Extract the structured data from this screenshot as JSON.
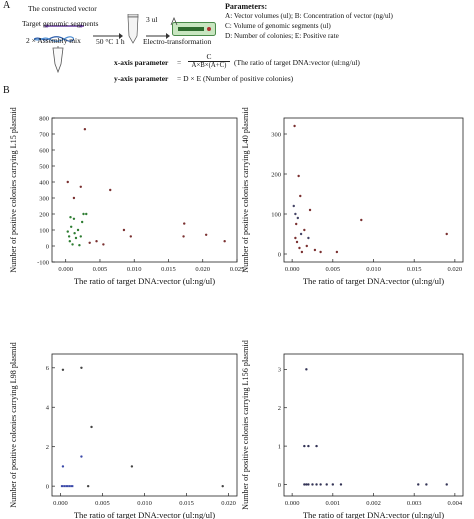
{
  "panelA": {
    "letter": "A",
    "constructed_vector": "The constructed vector",
    "target_segments": "Target genomic segments",
    "assembly_mix": "2 × Assembly mix",
    "incubation": "50 °C 1 h",
    "volume": "3 ul",
    "electro": "Electro-transformation",
    "params_title": "Parameters:",
    "params": [
      "A: Vector volumes (ul); B: Concentration of vector (ng/ul)",
      "C: Volume of genomic segments (ul)",
      "D: Number of colonies; E: Positive rate"
    ],
    "x_param_label": "x-axis parameter",
    "x_param_eq": "=",
    "x_param_num": "C",
    "x_param_den": "A×B×(A+C)",
    "x_param_note": "(The ratio of target DNA:vector (ul:ng/ul)",
    "y_param_label": "y-axis parameter",
    "y_param_rest": "= D × E (Number of positive colonies)"
  },
  "panelB": {
    "letter": "B"
  },
  "chart_data": [
    {
      "type": "scatter",
      "xlabel": "The ratio of target DNA:vector (ul:ng/ul)",
      "ylabel": "Number of positive colonies carrying L15 plasmid",
      "xlim": [
        -0.002,
        0.025
      ],
      "ylim": [
        -100,
        800
      ],
      "xticks": [
        0.0,
        0.005,
        0.01,
        0.015,
        0.02,
        0.025
      ],
      "xtick_labels": [
        "0.000",
        "0.005",
        "0.010",
        "0.015",
        "0.020",
        "0.025"
      ],
      "yticks": [
        -100,
        0,
        100,
        200,
        300,
        400,
        500,
        600,
        700,
        800
      ],
      "ytick_labels": [
        "-100",
        "0",
        "100",
        "200",
        "300",
        "400",
        "500",
        "600",
        "700",
        "800"
      ],
      "series": [
        {
          "color": "#2e7d32",
          "points": [
            [
              0.0003,
              90
            ],
            [
              0.0005,
              60
            ],
            [
              0.0006,
              30
            ],
            [
              0.0007,
              180
            ],
            [
              0.0008,
              120
            ],
            [
              0.001,
              10
            ],
            [
              0.0012,
              170
            ],
            [
              0.0013,
              80
            ],
            [
              0.0015,
              50
            ],
            [
              0.0018,
              100
            ],
            [
              0.002,
              5
            ],
            [
              0.0022,
              60
            ],
            [
              0.0024,
              150
            ],
            [
              0.0026,
              200
            ],
            [
              0.003,
              200
            ]
          ]
        },
        {
          "color": "#7a3030",
          "points": [
            [
              0.0003,
              400
            ],
            [
              0.0012,
              300
            ],
            [
              0.0022,
              370
            ],
            [
              0.0028,
              730
            ],
            [
              0.0035,
              20
            ],
            [
              0.0045,
              30
            ],
            [
              0.0055,
              10
            ],
            [
              0.0065,
              350
            ],
            [
              0.0085,
              100
            ],
            [
              0.0095,
              60
            ],
            [
              0.0173,
              140
            ],
            [
              0.0172,
              60
            ],
            [
              0.0205,
              70
            ],
            [
              0.0232,
              30
            ]
          ]
        }
      ]
    },
    {
      "type": "scatter",
      "xlabel": "The ratio of target DNA:vector (ul:ng/ul)",
      "ylabel": "Number of positive colonies carrying L40 plasmid",
      "xlim": [
        -0.001,
        0.021
      ],
      "ylim": [
        -20,
        340
      ],
      "xticks": [
        0.0,
        0.005,
        0.01,
        0.015,
        0.02
      ],
      "xtick_labels": [
        "0.000",
        "0.005",
        "0.010",
        "0.015",
        "0.020"
      ],
      "yticks": [
        0,
        100,
        200,
        300
      ],
      "ytick_labels": [
        "0",
        "100",
        "200",
        "300"
      ],
      "series": [
        {
          "color": "#7a3030",
          "points": [
            [
              0.0003,
              320
            ],
            [
              0.0008,
              195
            ],
            [
              0.001,
              145
            ],
            [
              0.0005,
              75
            ],
            [
              0.0004,
              40
            ],
            [
              0.0006,
              30
            ],
            [
              0.0009,
              15
            ],
            [
              0.0012,
              5
            ],
            [
              0.0015,
              60
            ],
            [
              0.0018,
              20
            ],
            [
              0.0022,
              110
            ],
            [
              0.0028,
              10
            ],
            [
              0.0035,
              5
            ],
            [
              0.0055,
              5
            ],
            [
              0.0085,
              85
            ],
            [
              0.019,
              50
            ]
          ]
        },
        {
          "color": "#444466",
          "points": [
            [
              0.0002,
              120
            ],
            [
              0.0004,
              100
            ],
            [
              0.0007,
              90
            ],
            [
              0.0011,
              50
            ],
            [
              0.002,
              40
            ]
          ]
        }
      ]
    },
    {
      "type": "scatter",
      "xlabel": "The ratio of target DNA:vector (ul:ng/ul)",
      "ylabel": "Number of positive colonies carrying L98 plasmid",
      "xlim": [
        -0.001,
        0.021
      ],
      "ylim": [
        -0.5,
        6.7
      ],
      "xticks": [
        0.0,
        0.005,
        0.01,
        0.015,
        0.02
      ],
      "xtick_labels": [
        "0.000",
        "0.005",
        "0.010",
        "0.015",
        "0.020"
      ],
      "yticks": [
        0,
        2,
        4,
        6
      ],
      "ytick_labels": [
        "0",
        "2",
        "4",
        "6"
      ],
      "series": [
        {
          "color": "#3a48a8",
          "points": [
            [
              0.0002,
              0
            ],
            [
              0.0005,
              0
            ],
            [
              0.0008,
              0
            ],
            [
              0.0011,
              0
            ],
            [
              0.0014,
              0
            ],
            [
              0.0003,
              1
            ],
            [
              0.0025,
              1.5
            ]
          ]
        },
        {
          "color": "#444444",
          "points": [
            [
              0.0003,
              5.9
            ],
            [
              0.0025,
              6
            ],
            [
              0.0037,
              3
            ],
            [
              0.0033,
              0
            ],
            [
              0.0085,
              1
            ],
            [
              0.0193,
              0
            ]
          ]
        }
      ]
    },
    {
      "type": "scatter",
      "xlabel": "The ratio of target DNA:vector (ul:ng/ul)",
      "ylabel": "Number of positive colonies carrying L156 plasmid",
      "xlim": [
        -0.0002,
        0.0042
      ],
      "ylim": [
        -0.3,
        3.4
      ],
      "xticks": [
        0.0,
        0.001,
        0.002,
        0.003,
        0.004
      ],
      "xtick_labels": [
        "0.000",
        "0.001",
        "0.002",
        "0.003",
        "0.004"
      ],
      "yticks": [
        0,
        1,
        2,
        3
      ],
      "ytick_labels": [
        "0",
        "1",
        "2",
        "3"
      ],
      "series": [
        {
          "color": "#333355",
          "points": [
            [
              0.0003,
              1
            ],
            [
              0.00035,
              3
            ],
            [
              0.0004,
              1
            ],
            [
              0.0006,
              1
            ],
            [
              0.0003,
              0
            ],
            [
              0.00035,
              0
            ],
            [
              0.0004,
              0
            ],
            [
              0.0005,
              0
            ],
            [
              0.0006,
              0
            ],
            [
              0.0007,
              0
            ],
            [
              0.00085,
              0
            ],
            [
              0.001,
              0
            ],
            [
              0.0012,
              0
            ],
            [
              0.0031,
              0
            ],
            [
              0.0033,
              0
            ],
            [
              0.0038,
              0
            ]
          ]
        }
      ]
    }
  ]
}
